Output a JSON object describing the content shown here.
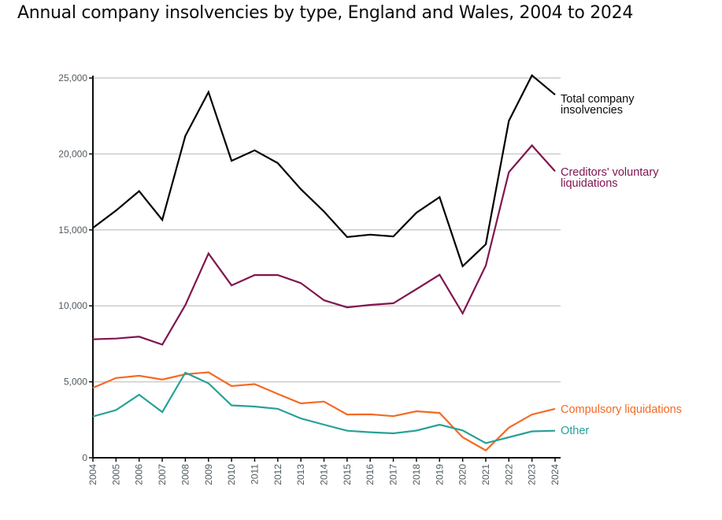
{
  "chart_data": {
    "type": "line",
    "title": "Annual company insolvencies by type, England and Wales, 2004 to 2024",
    "xlabel": "",
    "ylabel": "",
    "ylim": [
      0,
      25000
    ],
    "yticks": [
      0,
      5000,
      10000,
      15000,
      20000,
      25000
    ],
    "ytick_labels": [
      "0",
      "5,000",
      "10,000",
      "15,000",
      "20,000",
      "25,000"
    ],
    "grid": true,
    "legend": "direct labels at right end of lines",
    "x": [
      "2004",
      "2005",
      "2006",
      "2007",
      "2008",
      "2009",
      "2010",
      "2011",
      "2012",
      "2013",
      "2014",
      "2015",
      "2016",
      "2017",
      "2018",
      "2019",
      "2020",
      "2021",
      "2022",
      "2023",
      "2024"
    ],
    "series": [
      {
        "name": "Total company insolvencies",
        "label_lines": [
          "Total company",
          "insolvencies"
        ],
        "color": "#000000",
        "values": [
          15130,
          16270,
          17550,
          15660,
          21190,
          24070,
          19550,
          20240,
          19400,
          17680,
          16210,
          14530,
          14690,
          14570,
          16130,
          17160,
          12610,
          14050,
          22180,
          25170,
          23900
        ]
      },
      {
        "name": "Creditors' voluntary liquidations",
        "label_lines": [
          "Creditors' voluntary",
          "liquidations"
        ],
        "color": "#801650",
        "values": [
          7800,
          7850,
          7970,
          7450,
          10050,
          13450,
          11350,
          12030,
          12030,
          11500,
          10370,
          9900,
          10060,
          10170,
          11100,
          12050,
          9500,
          12650,
          18800,
          20560,
          18860
        ]
      },
      {
        "name": "Compulsory liquidations",
        "label_lines": [
          "Compulsory liquidations"
        ],
        "color": "#f46a25",
        "values": [
          4600,
          5250,
          5400,
          5150,
          5500,
          5630,
          4720,
          4850,
          4200,
          3580,
          3700,
          2850,
          2860,
          2740,
          3060,
          2950,
          1350,
          480,
          1980,
          2850,
          3220
        ]
      },
      {
        "name": "Other",
        "label_lines": [
          "Other"
        ],
        "color": "#28a197",
        "values": [
          2720,
          3140,
          4150,
          3010,
          5600,
          4900,
          3450,
          3370,
          3220,
          2590,
          2180,
          1780,
          1680,
          1610,
          1790,
          2180,
          1800,
          960,
          1350,
          1740,
          1780
        ]
      }
    ]
  }
}
